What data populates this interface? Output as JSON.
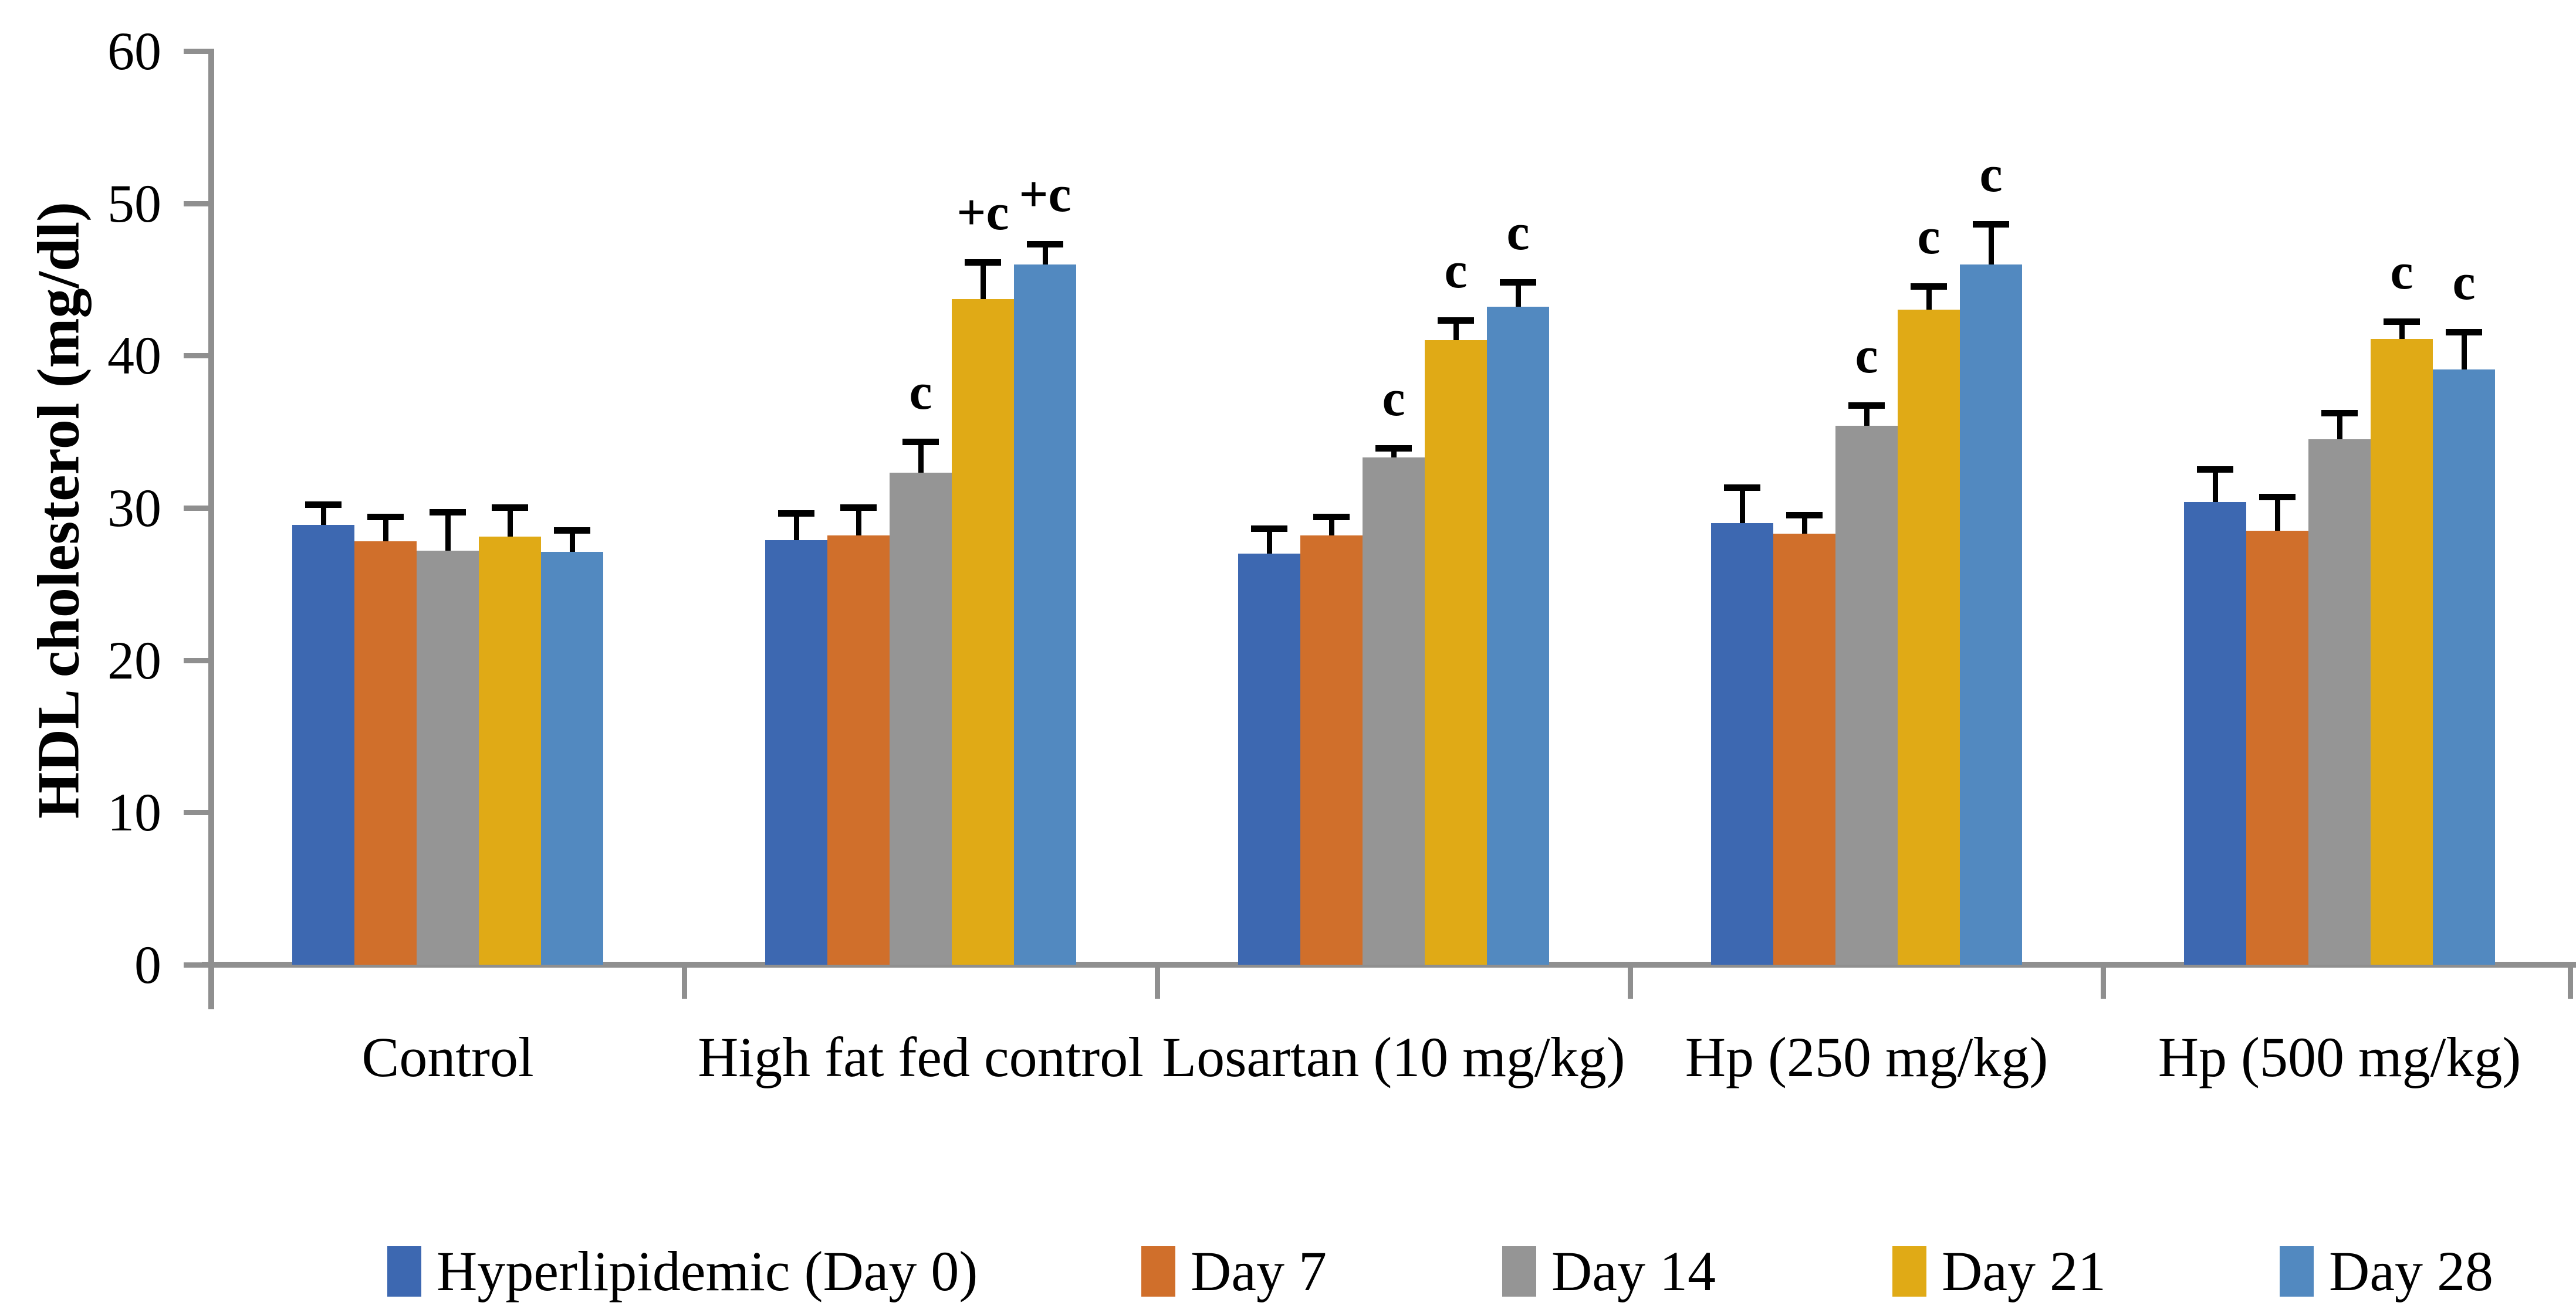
{
  "chart_data": {
    "type": "bar",
    "title": "",
    "ylabel": "HDL cholesterol (mg/dl)",
    "xlabel": "",
    "ylim": [
      0,
      60
    ],
    "yticks": [
      0,
      10,
      20,
      30,
      40,
      50,
      60
    ],
    "grid": false,
    "legend_position": "bottom",
    "error_bars": "plus-direction",
    "categories": [
      "Control",
      "High fat fed control",
      "Losartan (10 mg/kg)",
      "Hp (250 mg/kg)",
      "Hp (500 mg/kg)"
    ],
    "series": [
      {
        "name": "Hyperlipidemic (Day 0)",
        "color": "#3D68B1",
        "values": [
          28.9,
          27.9,
          27.0,
          29.0,
          30.4
        ],
        "errors": [
          1.3,
          1.7,
          1.6,
          2.3,
          2.1
        ],
        "annotations": [
          "",
          "",
          "",
          "",
          ""
        ]
      },
      {
        "name": "Day 7",
        "color": "#D06F2B",
        "values": [
          27.8,
          28.2,
          28.2,
          28.3,
          28.5
        ],
        "errors": [
          1.6,
          1.8,
          1.2,
          1.2,
          2.2
        ],
        "annotations": [
          "",
          "",
          "",
          "",
          ""
        ]
      },
      {
        "name": "Day 14",
        "color": "#959595",
        "values": [
          27.2,
          32.3,
          33.3,
          35.4,
          34.5
        ],
        "errors": [
          2.5,
          2.0,
          0.6,
          1.3,
          1.7
        ],
        "annotations": [
          "",
          "c",
          "c",
          "c",
          ""
        ]
      },
      {
        "name": "Day 21",
        "color": "#E0AA16",
        "values": [
          28.1,
          43.7,
          41.0,
          43.0,
          41.1
        ],
        "errors": [
          1.9,
          2.4,
          1.3,
          1.5,
          1.1
        ],
        "annotations": [
          "",
          "+c",
          "c",
          "c",
          "c"
        ]
      },
      {
        "name": "Day 28",
        "color": "#5289C0",
        "values": [
          27.1,
          46.0,
          43.2,
          46.0,
          39.1
        ],
        "errors": [
          1.4,
          1.3,
          1.6,
          2.6,
          2.4
        ],
        "annotations": [
          "",
          "+c",
          "c",
          "c",
          "c"
        ]
      }
    ],
    "axis_color": "#8F8F8F",
    "error_bar_color": "#000000",
    "text_color": "#000000"
  }
}
